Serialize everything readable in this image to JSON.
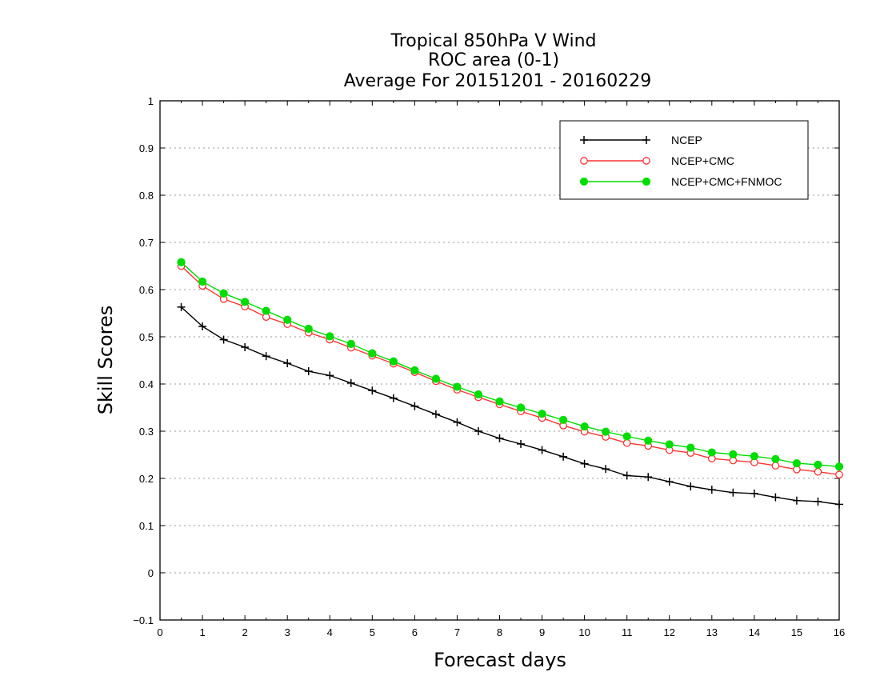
{
  "chart_data": {
    "type": "line",
    "title": [
      "Tropical 850hPa V Wind",
      "ROC area (0-1)",
      "Average For 20151201 - 20160229"
    ],
    "xlabel": "Forecast days",
    "ylabel": "Skill Scores",
    "xlim": [
      0,
      16
    ],
    "ylim": [
      -0.1,
      1
    ],
    "xticks": [
      "0",
      "1",
      "2",
      "3",
      "4",
      "5",
      "6",
      "7",
      "8",
      "9",
      "10",
      "11",
      "12",
      "13",
      "14",
      "15",
      "16"
    ],
    "yticks": [
      "−0.1",
      "0",
      "0.1",
      "0.2",
      "0.3",
      "0.4",
      "0.5",
      "0.6",
      "0.7",
      "0.8",
      "0.9",
      "1"
    ],
    "ytick_values": [
      -0.1,
      0,
      0.1,
      0.2,
      0.3,
      0.4,
      0.5,
      0.6,
      0.7,
      0.8,
      0.9,
      1.0
    ],
    "grid": true,
    "legend_position": "top-right",
    "x": [
      0.5,
      1,
      1.5,
      2,
      2.5,
      3,
      3.5,
      4,
      4.5,
      5,
      5.5,
      6,
      6.5,
      7,
      7.5,
      8,
      8.5,
      9,
      9.5,
      10,
      10.5,
      11,
      11.5,
      12,
      12.5,
      13,
      13.5,
      14,
      14.5,
      15,
      15.5,
      16
    ],
    "series": [
      {
        "name": "NCEP",
        "color": "#000000",
        "marker": "plus",
        "values": [
          0.563,
          0.522,
          0.494,
          0.478,
          0.459,
          0.444,
          0.427,
          0.418,
          0.402,
          0.386,
          0.37,
          0.353,
          0.336,
          0.319,
          0.3,
          0.285,
          0.273,
          0.26,
          0.246,
          0.231,
          0.22,
          0.206,
          0.203,
          0.193,
          0.183,
          0.176,
          0.17,
          0.168,
          0.16,
          0.153,
          0.151,
          0.145
        ]
      },
      {
        "name": "NCEP+CMC",
        "color": "#ff3333",
        "marker": "open-circle",
        "values": [
          0.65,
          0.608,
          0.58,
          0.564,
          0.542,
          0.527,
          0.509,
          0.494,
          0.477,
          0.46,
          0.443,
          0.425,
          0.406,
          0.388,
          0.372,
          0.357,
          0.342,
          0.328,
          0.312,
          0.299,
          0.288,
          0.275,
          0.269,
          0.26,
          0.254,
          0.242,
          0.238,
          0.234,
          0.227,
          0.219,
          0.214,
          0.208
        ]
      },
      {
        "name": "NCEP+CMC+FNMOC",
        "color": "#00dd00",
        "marker": "filled-circle",
        "values": [
          0.658,
          0.617,
          0.592,
          0.574,
          0.555,
          0.536,
          0.517,
          0.501,
          0.485,
          0.465,
          0.448,
          0.429,
          0.411,
          0.394,
          0.378,
          0.363,
          0.35,
          0.337,
          0.324,
          0.31,
          0.299,
          0.289,
          0.28,
          0.272,
          0.265,
          0.255,
          0.251,
          0.247,
          0.241,
          0.232,
          0.229,
          0.225
        ]
      }
    ]
  }
}
